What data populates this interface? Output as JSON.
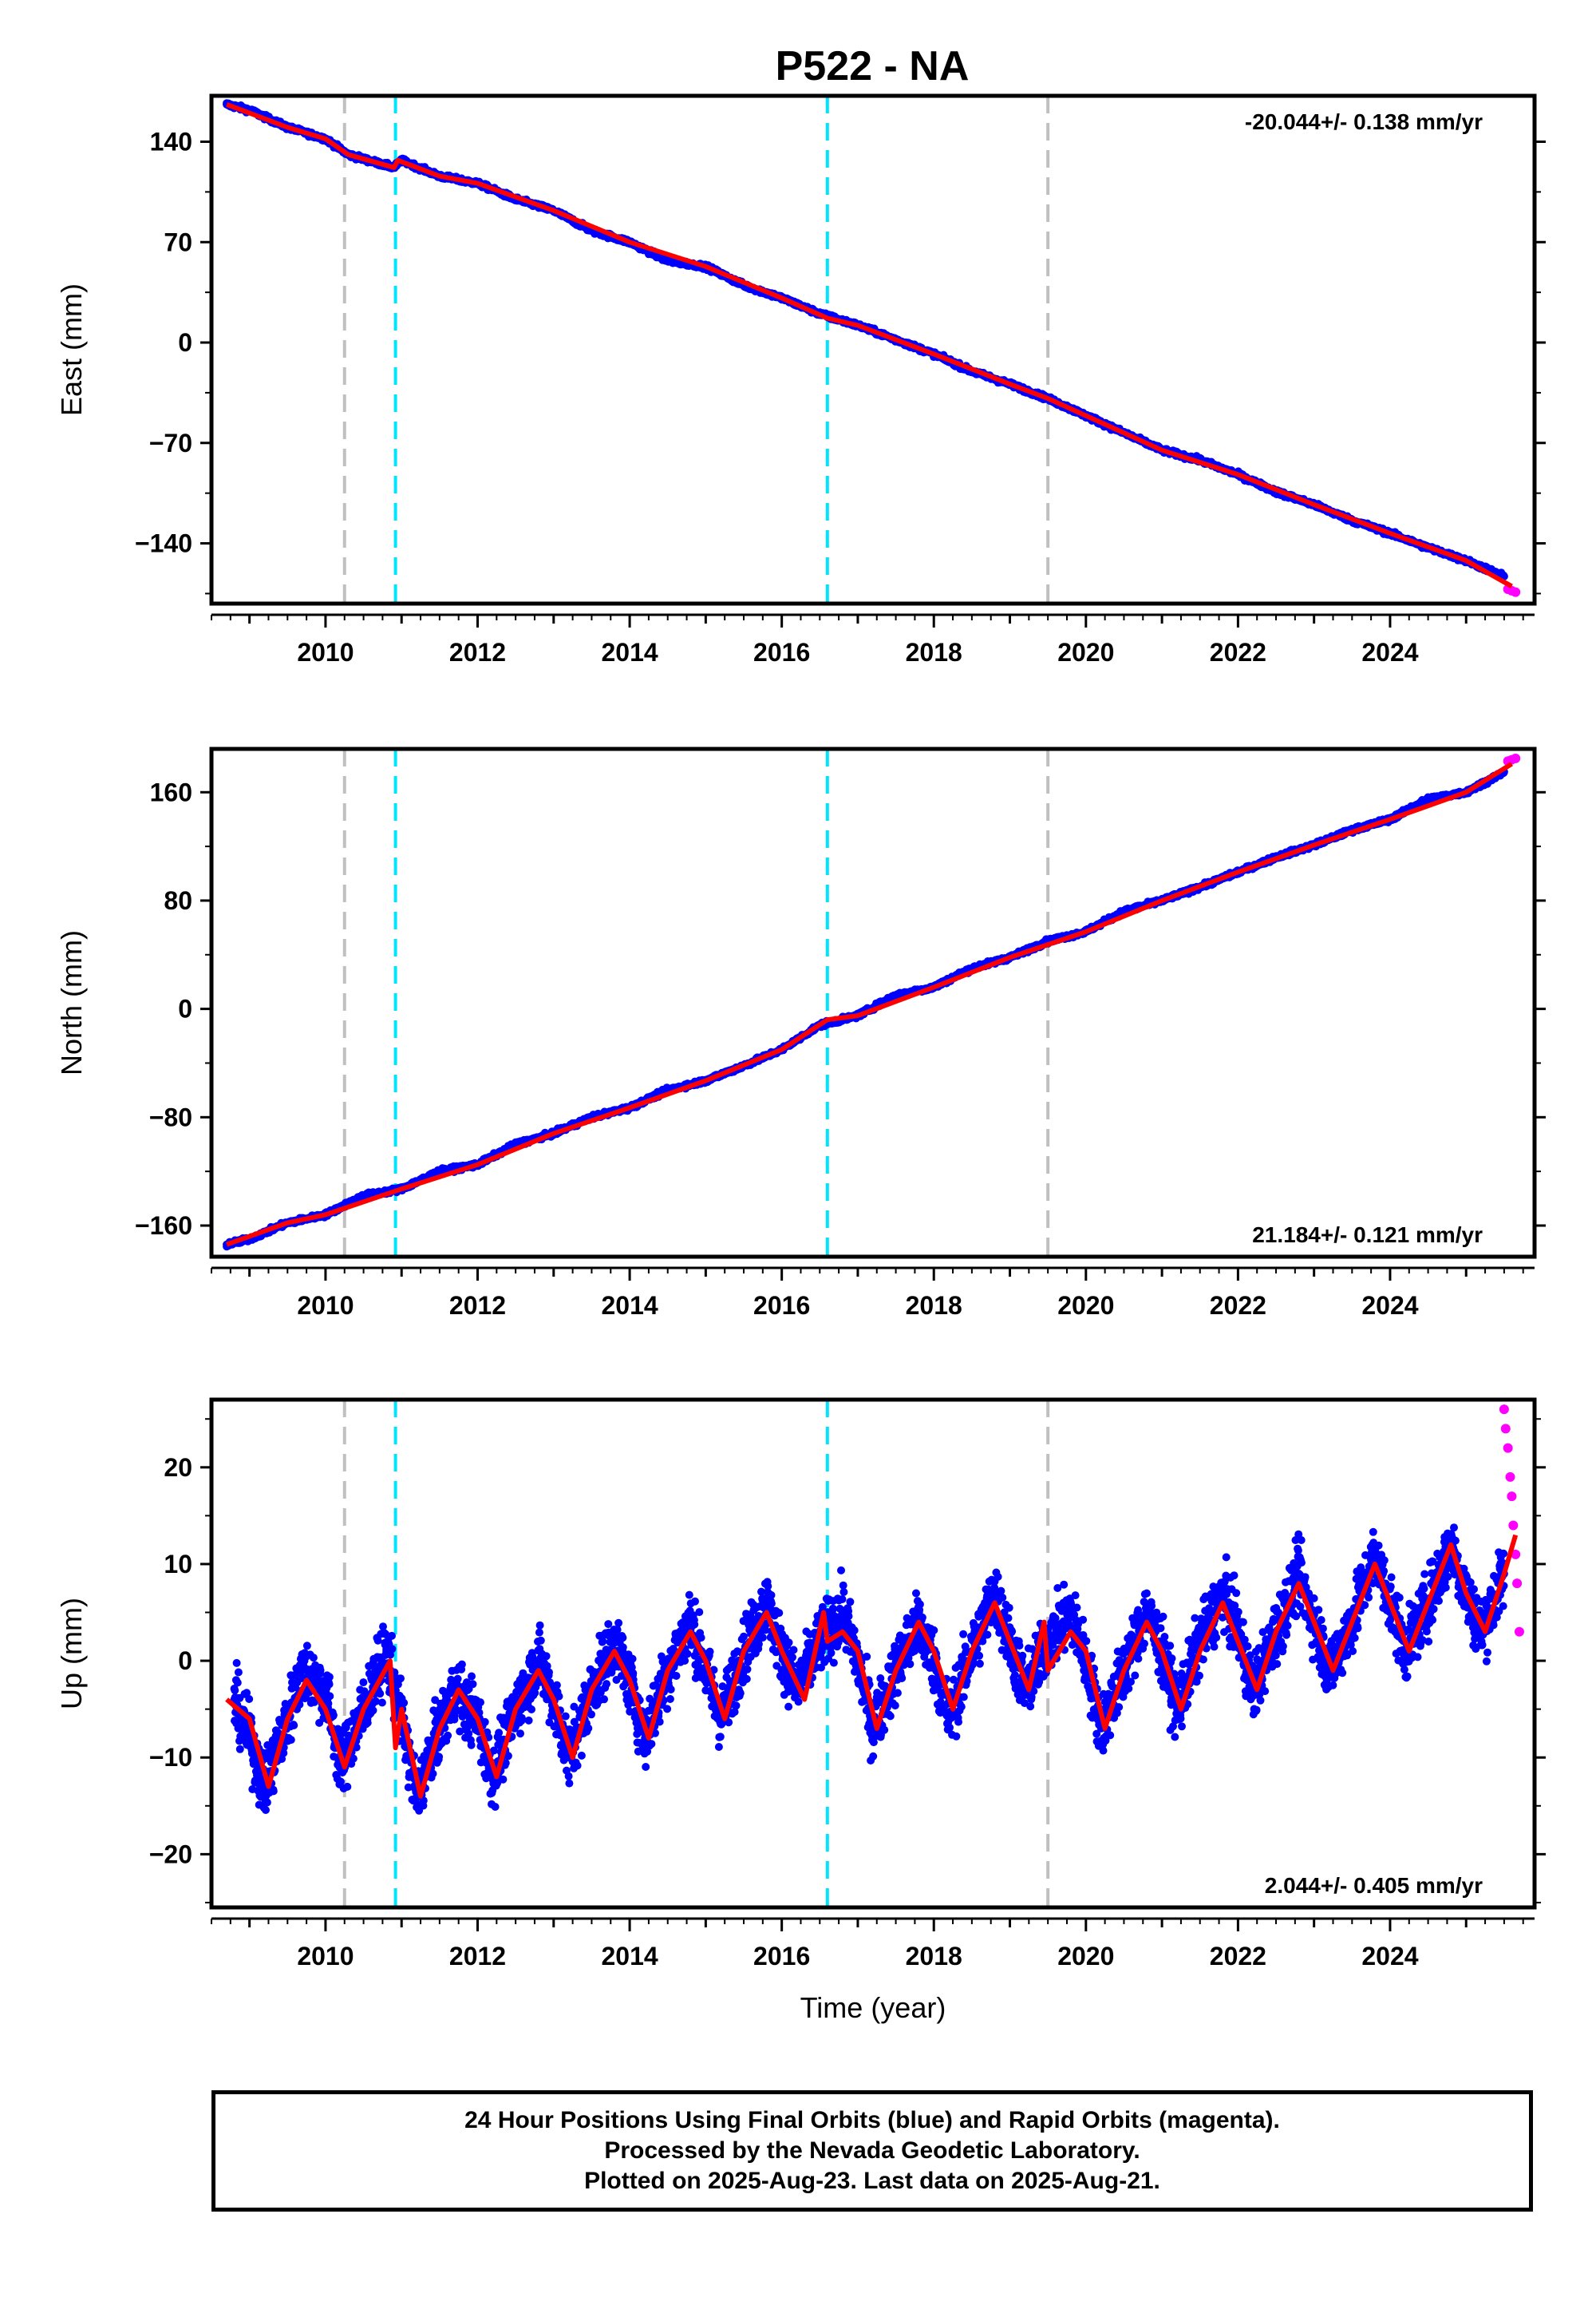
{
  "title": "P522 - NA",
  "footer": {
    "lines": [
      "24 Hour Positions Using Final Orbits (blue) and Rapid Orbits (magenta).",
      "Processed by the Nevada Geodetic Laboratory.",
      "Plotted on 2025-Aug-23. Last data on 2025-Aug-21."
    ]
  },
  "colors": {
    "final_orbits": "#0000ff",
    "rapid_orbits": "#ff00ff",
    "model_fit": "#ff0000",
    "equipment_change_line": "#c0c0c0",
    "earthquake_line": "#00e5ff"
  },
  "chart_data": [
    {
      "type": "scatter",
      "component": "east",
      "ylabel": "East (mm)",
      "xlabel": "",
      "xlim": [
        2008.5,
        2025.9
      ],
      "ylim": [
        -182,
        172
      ],
      "x_ticks": [
        2010,
        2012,
        2014,
        2016,
        2018,
        2020,
        2022,
        2024
      ],
      "y_ticks": [
        140,
        70,
        0,
        -70,
        -140
      ],
      "y_tick_labels": [
        "140",
        "70",
        "0",
        "−70",
        "−140"
      ],
      "rate_label": "-20.044+/- 0.138 mm/yr",
      "rate_label_position": "top-right",
      "series": [
        {
          "name": "Final Orbits",
          "color": "#0000ff",
          "x": [
            2008.7,
            2009.0,
            2009.5,
            2010.0,
            2010.3,
            2010.9,
            2011.0,
            2011.5,
            2012.0,
            2012.5,
            2013.0,
            2013.5,
            2014.0,
            2014.5,
            2015.0,
            2015.5,
            2016.0,
            2016.5,
            2017.0,
            2017.5,
            2018.0,
            2018.5,
            2019.0,
            2019.5,
            2020.0,
            2020.5,
            2021.0,
            2021.5,
            2022.0,
            2022.5,
            2023.0,
            2023.5,
            2024.0,
            2024.5,
            2025.0,
            2025.5
          ],
          "y": [
            166,
            162,
            150,
            142,
            131,
            122,
            127,
            116,
            111,
            100,
            92,
            78,
            70,
            57,
            53,
            40,
            31,
            20,
            12,
            2,
            -8,
            -20,
            -29,
            -39,
            -51,
            -63,
            -75,
            -82,
            -92,
            -104,
            -113,
            -124,
            -133,
            -143,
            -152,
            -163
          ]
        },
        {
          "name": "Rapid Orbits",
          "color": "#ff00ff",
          "x": [
            2025.55,
            2025.6,
            2025.65
          ],
          "y": [
            -172,
            -173,
            -174
          ]
        }
      ],
      "model": {
        "x": [
          2008.7,
          2009.5,
          2010.0,
          2010.3,
          2010.9,
          2010.95,
          2011.5,
          2012.0,
          2013.0,
          2014.0,
          2015.0,
          2016.0,
          2016.6,
          2017.0,
          2018.0,
          2019.0,
          2019.5,
          2020.0,
          2021.0,
          2022.0,
          2023.0,
          2024.0,
          2025.0,
          2025.6
        ],
        "y": [
          166,
          150,
          142,
          131,
          122,
          127,
          116,
          111,
          92,
          70,
          53,
          31,
          17,
          12,
          -8,
          -29,
          -39,
          -51,
          -75,
          -92,
          -113,
          -133,
          -152,
          -170
        ]
      },
      "vertical_lines": [
        {
          "x": 2010.25,
          "type": "equipment_change",
          "color": "#c0c0c0"
        },
        {
          "x": 2010.92,
          "type": "earthquake",
          "color": "#00e5ff"
        },
        {
          "x": 2016.6,
          "type": "earthquake",
          "color": "#00e5ff"
        },
        {
          "x": 2019.5,
          "type": "equipment_change",
          "color": "#c0c0c0"
        }
      ]
    },
    {
      "type": "scatter",
      "component": "north",
      "ylabel": "North (mm)",
      "xlabel": "",
      "xlim": [
        2008.5,
        2025.9
      ],
      "ylim": [
        -183,
        192
      ],
      "x_ticks": [
        2010,
        2012,
        2014,
        2016,
        2018,
        2020,
        2022,
        2024
      ],
      "y_ticks": [
        160,
        80,
        0,
        -80,
        -160
      ],
      "y_tick_labels": [
        "160",
        "80",
        "0",
        "−80",
        "−160"
      ],
      "rate_label": "21.184+/- 0.121 mm/yr",
      "rate_label_position": "bottom-right",
      "series": [
        {
          "name": "Final Orbits",
          "color": "#0000ff",
          "x": [
            2008.7,
            2009.0,
            2009.5,
            2010.0,
            2010.5,
            2011.0,
            2011.5,
            2012.0,
            2012.5,
            2013.0,
            2013.5,
            2014.0,
            2014.5,
            2015.0,
            2015.5,
            2016.0,
            2016.5,
            2017.0,
            2017.5,
            2018.0,
            2018.5,
            2019.0,
            2019.5,
            2020.0,
            2020.5,
            2021.0,
            2021.5,
            2022.0,
            2022.5,
            2023.0,
            2023.5,
            2024.0,
            2024.5,
            2025.0,
            2025.5
          ],
          "y": [
            -174,
            -170,
            -158,
            -152,
            -138,
            -133,
            -120,
            -115,
            -100,
            -92,
            -80,
            -73,
            -60,
            -53,
            -42,
            -30,
            -12,
            -5,
            10,
            16,
            30,
            38,
            50,
            57,
            72,
            80,
            90,
            101,
            112,
            121,
            132,
            140,
            155,
            160,
            175
          ]
        },
        {
          "name": "Rapid Orbits",
          "color": "#ff00ff",
          "x": [
            2025.55,
            2025.6,
            2025.65
          ],
          "y": [
            183,
            184,
            185
          ]
        }
      ],
      "model": {
        "x": [
          2008.7,
          2009.5,
          2010.0,
          2011.0,
          2012.0,
          2013.0,
          2014.0,
          2015.0,
          2016.0,
          2016.6,
          2017.0,
          2018.0,
          2019.0,
          2020.0,
          2021.0,
          2022.0,
          2023.0,
          2024.0,
          2025.0,
          2025.6
        ],
        "y": [
          -174,
          -158,
          -152,
          -133,
          -115,
          -92,
          -73,
          -53,
          -30,
          -8,
          -5,
          16,
          38,
          57,
          80,
          101,
          121,
          140,
          160,
          181
        ]
      },
      "vertical_lines": [
        {
          "x": 2010.25,
          "type": "equipment_change",
          "color": "#c0c0c0"
        },
        {
          "x": 2010.92,
          "type": "earthquake",
          "color": "#00e5ff"
        },
        {
          "x": 2016.6,
          "type": "earthquake",
          "color": "#00e5ff"
        },
        {
          "x": 2019.5,
          "type": "equipment_change",
          "color": "#c0c0c0"
        }
      ]
    },
    {
      "type": "scatter",
      "component": "up",
      "ylabel": "Up (mm)",
      "xlabel": "Time (year)",
      "xlim": [
        2008.5,
        2025.9
      ],
      "ylim": [
        -25.5,
        27
      ],
      "x_ticks": [
        2010,
        2012,
        2014,
        2016,
        2018,
        2020,
        2022,
        2024
      ],
      "y_ticks": [
        20,
        10,
        0,
        -10,
        -20
      ],
      "y_tick_labels": [
        "20",
        "10",
        "0",
        "−10",
        "−20"
      ],
      "rate_label": "2.044+/- 0.405 mm/yr",
      "rate_label_position": "bottom-right",
      "series": [
        {
          "name": "Final Orbits",
          "color": "#0000ff",
          "x": [
            2008.8,
            2009.0,
            2009.2,
            2009.5,
            2009.7,
            2010.0,
            2010.2,
            2010.5,
            2010.8,
            2011.0,
            2011.2,
            2011.5,
            2011.7,
            2012.0,
            2012.2,
            2012.5,
            2012.8,
            2013.0,
            2013.2,
            2013.5,
            2013.8,
            2014.0,
            2014.2,
            2014.5,
            2014.8,
            2015.0,
            2015.2,
            2015.5,
            2015.8,
            2016.0,
            2016.2,
            2016.5,
            2016.8,
            2017.0,
            2017.2,
            2017.5,
            2017.8,
            2018.0,
            2018.2,
            2018.5,
            2018.8,
            2019.0,
            2019.2,
            2019.5,
            2019.8,
            2020.0,
            2020.2,
            2020.5,
            2020.8,
            2021.0,
            2021.2,
            2021.5,
            2021.8,
            2022.0,
            2022.2,
            2022.5,
            2022.8,
            2023.0,
            2023.2,
            2023.5,
            2023.8,
            2024.0,
            2024.2,
            2024.5,
            2024.8,
            2025.0,
            2025.2,
            2025.5
          ],
          "y": [
            -4,
            -8,
            -13,
            -6,
            -1,
            -3,
            -11,
            -5,
            1,
            -6,
            -14,
            -7,
            -3,
            -6,
            -12,
            -5,
            0,
            -4,
            -10,
            -3,
            2,
            -2,
            -8,
            -1,
            4,
            -1,
            -6,
            1,
            6,
            1,
            -3,
            2,
            5,
            0,
            -7,
            -1,
            4,
            0,
            -6,
            1,
            7,
            2,
            -3,
            2,
            5,
            0,
            -7,
            -1,
            5,
            1,
            -5,
            2,
            7,
            3,
            -3,
            3,
            9,
            4,
            -1,
            4,
            11,
            6,
            1,
            6,
            12,
            7,
            3,
            9
          ]
        },
        {
          "name": "Rapid Orbits",
          "color": "#ff00ff",
          "x": [
            2025.5,
            2025.52,
            2025.55,
            2025.58,
            2025.6,
            2025.62,
            2025.65,
            2025.67,
            2025.7
          ],
          "y": [
            26,
            24,
            22,
            19,
            17,
            14,
            11,
            8,
            3
          ]
        }
      ],
      "model": {
        "x": [
          2008.7,
          2009.0,
          2009.25,
          2009.5,
          2009.75,
          2010.0,
          2010.25,
          2010.5,
          2010.85,
          2010.92,
          2011.0,
          2011.25,
          2011.5,
          2011.75,
          2012.0,
          2012.25,
          2012.5,
          2012.8,
          2013.0,
          2013.25,
          2013.5,
          2013.8,
          2014.0,
          2014.25,
          2014.5,
          2014.8,
          2015.0,
          2015.25,
          2015.5,
          2015.8,
          2016.0,
          2016.3,
          2016.55,
          2016.6,
          2016.8,
          2017.0,
          2017.25,
          2017.5,
          2017.8,
          2018.0,
          2018.25,
          2018.5,
          2018.8,
          2019.0,
          2019.25,
          2019.45,
          2019.5,
          2019.8,
          2020.0,
          2020.25,
          2020.5,
          2020.8,
          2021.0,
          2021.25,
          2021.5,
          2021.8,
          2022.0,
          2022.25,
          2022.5,
          2022.8,
          2023.0,
          2023.25,
          2023.5,
          2023.8,
          2024.0,
          2024.25,
          2024.5,
          2024.8,
          2025.0,
          2025.25,
          2025.5,
          2025.65
        ],
        "y": [
          -4,
          -6,
          -13,
          -6,
          -2,
          -5,
          -11,
          -5,
          0,
          -9,
          -5,
          -14,
          -7,
          -3,
          -6,
          -12,
          -5,
          -1,
          -4,
          -10,
          -3,
          1,
          -2,
          -8,
          -1,
          3,
          0,
          -6,
          1,
          5,
          1,
          -4,
          5,
          2,
          3,
          1,
          -7,
          -1,
          4,
          1,
          -5,
          1,
          6,
          2,
          -3,
          4,
          -1,
          3,
          1,
          -7,
          -1,
          4,
          1,
          -5,
          1,
          6,
          2,
          -3,
          3,
          8,
          4,
          -1,
          4,
          10,
          6,
          1,
          6,
          12,
          7,
          3,
          9,
          13
        ]
      },
      "vertical_lines": [
        {
          "x": 2010.25,
          "type": "equipment_change",
          "color": "#c0c0c0"
        },
        {
          "x": 2010.92,
          "type": "earthquake",
          "color": "#00e5ff"
        },
        {
          "x": 2016.6,
          "type": "earthquake",
          "color": "#00e5ff"
        },
        {
          "x": 2019.5,
          "type": "equipment_change",
          "color": "#c0c0c0"
        }
      ]
    }
  ]
}
